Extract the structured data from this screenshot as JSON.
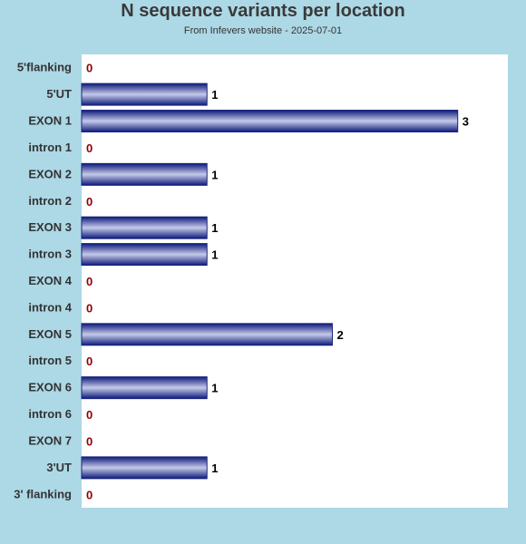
{
  "chart_data": {
    "type": "bar",
    "orientation": "horizontal",
    "title": "N sequence variants per location",
    "subtitle": "From Infevers website - 2025-07-01",
    "categories": [
      "5'flanking",
      "5'UT",
      "EXON 1",
      "intron 1",
      "EXON 2",
      "intron 2",
      "EXON 3",
      "intron 3",
      "EXON 4",
      "intron 4",
      "EXON 5",
      "intron 5",
      "EXON 6",
      "intron 6",
      "EXON 7",
      "3'UT",
      "3' flanking"
    ],
    "values": [
      0,
      1,
      3,
      0,
      1,
      0,
      1,
      1,
      0,
      0,
      2,
      0,
      1,
      0,
      0,
      1,
      0
    ],
    "xlim": [
      0,
      3.4
    ],
    "grid": false,
    "legend": "none"
  },
  "colors": {
    "background": "#add8e6",
    "plot_background": "#ffffff",
    "bar_dark": "#1a237e",
    "bar_light": "#c5cae9",
    "zero_label": "#8b0000",
    "value_label": "#000000"
  }
}
